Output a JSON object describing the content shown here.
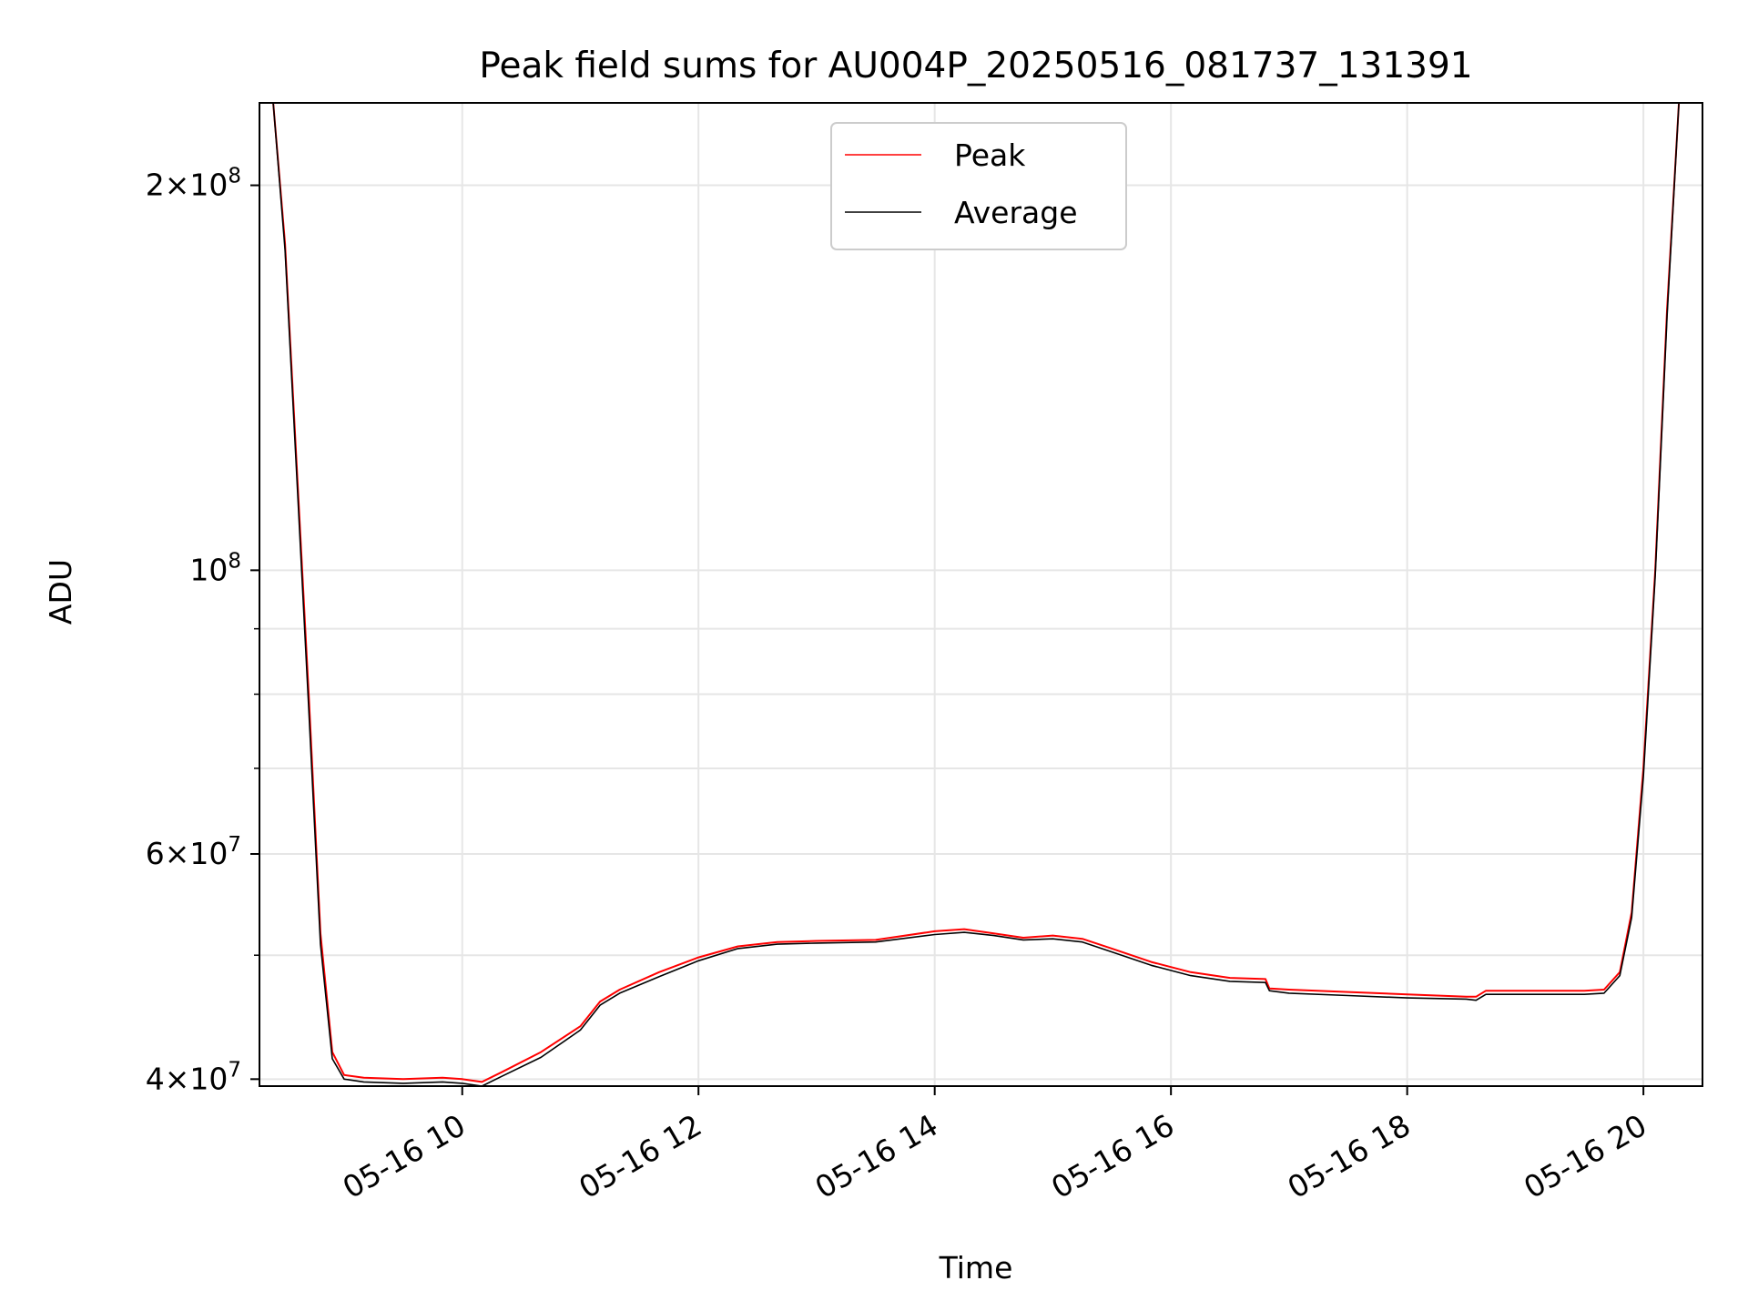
{
  "chart_data": {
    "type": "line",
    "title": "Peak field sums for AU004P_20250516_081737_131391",
    "xlabel": "Time",
    "ylabel": "ADU",
    "y_scale": "log",
    "xlim": [
      "05-16 08:17",
      "05-16 20:30"
    ],
    "ylim": [
      39500000,
      232000000
    ],
    "x_ticks": [
      "05-16 10",
      "05-16 12",
      "05-16 14",
      "05-16 16",
      "05-16 18",
      "05-16 20"
    ],
    "y_ticks": [
      {
        "value": 40000000,
        "label_base": "4×10",
        "label_exp": "7"
      },
      {
        "value": 60000000,
        "label_base": "6×10",
        "label_exp": "7"
      },
      {
        "value": 100000000,
        "label_base": "10",
        "label_exp": "8"
      },
      {
        "value": 200000000,
        "label_base": "2×10",
        "label_exp": "8"
      }
    ],
    "grid": true,
    "legend_position": "top-center",
    "series": [
      {
        "name": "Peak",
        "color": "#ff0000",
        "x": [
          "05-16 08:24",
          "05-16 08:30",
          "05-16 08:36",
          "05-16 08:42",
          "05-16 08:48",
          "05-16 08:54",
          "05-16 09:00",
          "05-16 09:10",
          "05-16 09:30",
          "05-16 09:50",
          "05-16 10:00",
          "05-16 10:10",
          "05-16 10:20",
          "05-16 10:40",
          "05-16 11:00",
          "05-16 11:10",
          "05-16 11:20",
          "05-16 11:40",
          "05-16 12:00",
          "05-16 12:20",
          "05-16 12:40",
          "05-16 13:00",
          "05-16 13:30",
          "05-16 14:00",
          "05-16 14:15",
          "05-16 14:30",
          "05-16 14:45",
          "05-16 15:00",
          "05-16 15:15",
          "05-16 15:30",
          "05-16 15:50",
          "05-16 16:10",
          "05-16 16:30",
          "05-16 16:48",
          "05-16 16:50",
          "05-16 17:00",
          "05-16 17:30",
          "05-16 18:00",
          "05-16 18:30",
          "05-16 18:35",
          "05-16 18:40",
          "05-16 19:00",
          "05-16 19:30",
          "05-16 19:40",
          "05-16 19:48",
          "05-16 19:54",
          "05-16 20:00",
          "05-16 20:06",
          "05-16 20:12",
          "05-16 20:18"
        ],
        "y": [
          232000000,
          180000000,
          120000000,
          80000000,
          52000000,
          42000000,
          40300000,
          40100000,
          40000000,
          40100000,
          40000000,
          39800000,
          40500000,
          42000000,
          44000000,
          46000000,
          47000000,
          48500000,
          49800000,
          50800000,
          51200000,
          51300000,
          51400000,
          52200000,
          52400000,
          52000000,
          51600000,
          51800000,
          51500000,
          50600000,
          49400000,
          48500000,
          48000000,
          47900000,
          47100000,
          47000000,
          46800000,
          46600000,
          46400000,
          46400000,
          46900000,
          46900000,
          46900000,
          47000000,
          48500000,
          54000000,
          70000000,
          100000000,
          160000000,
          232000000
        ]
      },
      {
        "name": "Average",
        "color": "#000000",
        "x": [
          "05-16 08:24",
          "05-16 08:30",
          "05-16 08:36",
          "05-16 08:42",
          "05-16 08:48",
          "05-16 08:54",
          "05-16 09:00",
          "05-16 09:10",
          "05-16 09:30",
          "05-16 09:50",
          "05-16 10:00",
          "05-16 10:10",
          "05-16 10:20",
          "05-16 10:40",
          "05-16 11:00",
          "05-16 11:10",
          "05-16 11:20",
          "05-16 11:40",
          "05-16 12:00",
          "05-16 12:20",
          "05-16 12:40",
          "05-16 13:00",
          "05-16 13:30",
          "05-16 14:00",
          "05-16 14:15",
          "05-16 14:30",
          "05-16 14:45",
          "05-16 15:00",
          "05-16 15:15",
          "05-16 15:30",
          "05-16 15:50",
          "05-16 16:10",
          "05-16 16:30",
          "05-16 16:48",
          "05-16 16:50",
          "05-16 17:00",
          "05-16 17:30",
          "05-16 18:00",
          "05-16 18:30",
          "05-16 18:35",
          "05-16 18:40",
          "05-16 19:00",
          "05-16 19:30",
          "05-16 19:40",
          "05-16 19:48",
          "05-16 19:54",
          "05-16 20:00",
          "05-16 20:06",
          "05-16 20:12",
          "05-16 20:18"
        ],
        "y": [
          232000000,
          178000000,
          118000000,
          78000000,
          51000000,
          41500000,
          40000000,
          39800000,
          39700000,
          39800000,
          39700000,
          39500000,
          40200000,
          41600000,
          43700000,
          45700000,
          46700000,
          48100000,
          49500000,
          50600000,
          51000000,
          51100000,
          51200000,
          51900000,
          52100000,
          51800000,
          51400000,
          51500000,
          51200000,
          50300000,
          49100000,
          48200000,
          47700000,
          47600000,
          46900000,
          46700000,
          46500000,
          46300000,
          46200000,
          46100000,
          46600000,
          46600000,
          46600000,
          46700000,
          48200000,
          53500000,
          69000000,
          99000000,
          158000000,
          232000000
        ]
      }
    ]
  }
}
